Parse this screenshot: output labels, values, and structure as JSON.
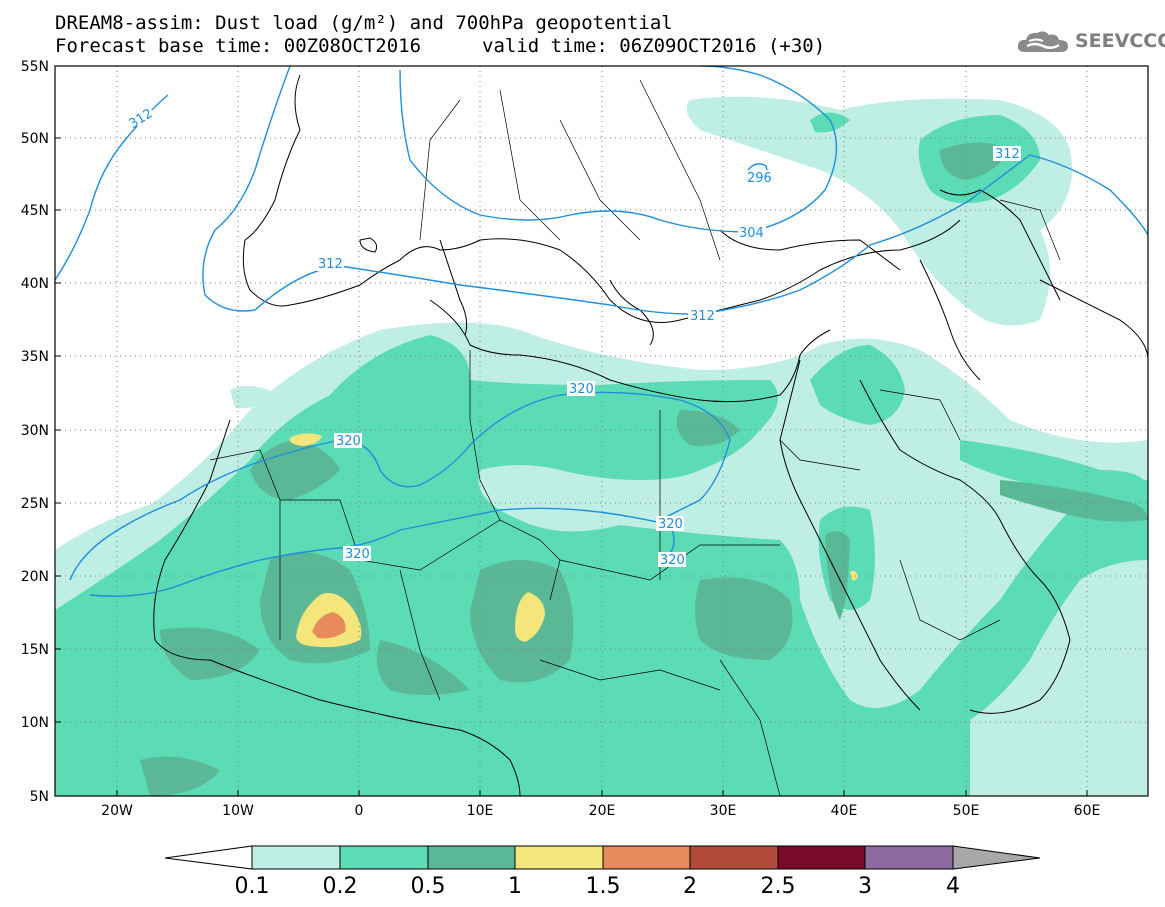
{
  "header": {
    "title_line1": "DREAM8-assim: Dust load (g/m²) and 700hPa geopotential",
    "title_line2": "Forecast base time: 00Z08OCT2016",
    "valid_time": "valid time: 06Z09OCT2016 (+30)"
  },
  "logo": {
    "text": "SEEVCCC",
    "icon": "cloud-icon",
    "color": "#7f7f7f"
  },
  "map": {
    "lon_range": [
      -25,
      65
    ],
    "lat_range": [
      5,
      55
    ],
    "lat_labels": [
      "55N",
      "50N",
      "45N",
      "40N",
      "35N",
      "30N",
      "25N",
      "20N",
      "15N",
      "10N",
      "5N"
    ],
    "lon_labels": [
      "20W",
      "10W",
      "0",
      "10E",
      "20E",
      "30E",
      "40E",
      "50E",
      "60E"
    ],
    "contour_labels": [
      "312",
      "296",
      "304",
      "312",
      "312",
      "312",
      "320",
      "320",
      "320",
      "320",
      "320"
    ]
  },
  "colorbar": {
    "ticks": [
      "0.1",
      "0.2",
      "0.5",
      "1",
      "1.5",
      "2",
      "2.5",
      "3",
      "4"
    ],
    "colors": [
      "#bfeee4",
      "#5bdcb4",
      "#5bb897",
      "#f4e67a",
      "#e88a5c",
      "#b24a3a",
      "#7a0a2a",
      "#8d6aa0",
      "#a8a8a8"
    ]
  },
  "colors": {
    "dust_light": "#bfeee4",
    "dust_mid": "#5bdcb4",
    "dust_dark": "#5bb897",
    "dust_yellow": "#f4e67a",
    "dust_orange": "#e88a5c",
    "contour": "#1e8fdc"
  }
}
